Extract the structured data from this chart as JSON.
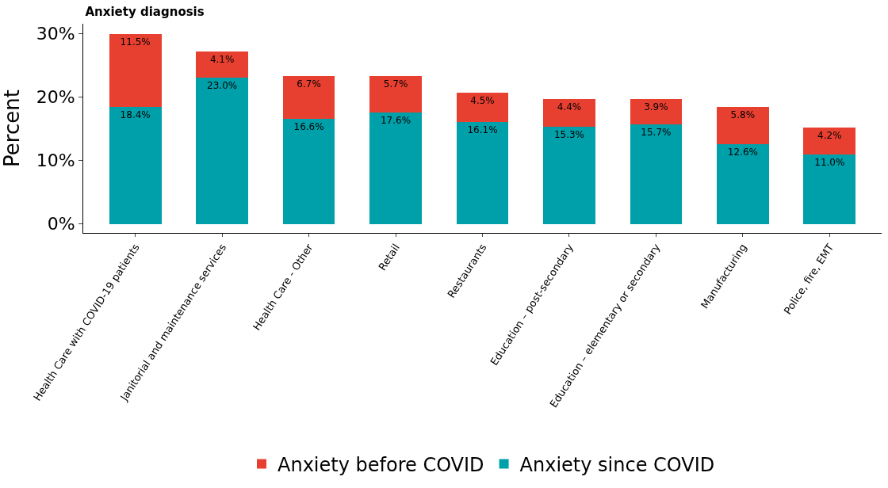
{
  "chart_data": {
    "type": "bar",
    "stacked": true,
    "title": "Anxiety diagnosis",
    "ylabel": "Percent",
    "categories": [
      "Health Care with COVID-19 patients",
      "Janitorial and maintenance services",
      "Health Care - Other",
      "Retail",
      "Restaurants",
      "Education – post-secondary",
      "Education – elementary or secondary",
      "Manufacturing",
      "Police, fire, EMT"
    ],
    "series": [
      {
        "name": "Anxiety since COVID",
        "color": "#00a0aa",
        "values": [
          18.4,
          23.0,
          16.6,
          17.6,
          16.1,
          15.3,
          15.7,
          12.6,
          11.0
        ],
        "value_labels": [
          "18.4%",
          "23.0%",
          "16.6%",
          "17.6%",
          "16.1%",
          "15.3%",
          "15.7%",
          "12.6%",
          "11.0%"
        ]
      },
      {
        "name": "Anxiety before COVID",
        "color": "#e84030",
        "values": [
          11.5,
          4.1,
          6.7,
          5.7,
          4.5,
          4.4,
          3.9,
          5.8,
          4.2
        ],
        "value_labels": [
          "11.5%",
          "4.1%",
          "6.7%",
          "5.7%",
          "4.5%",
          "4.4%",
          "3.9%",
          "5.8%",
          "4.2%"
        ]
      }
    ],
    "ylim": [
      -1.4,
      31.5
    ],
    "yticks": [
      {
        "value": 0,
        "label": "0%"
      },
      {
        "value": 10,
        "label": "10%"
      },
      {
        "value": 20,
        "label": "20%"
      },
      {
        "value": 30,
        "label": "30%"
      }
    ],
    "legend": "bottom"
  }
}
